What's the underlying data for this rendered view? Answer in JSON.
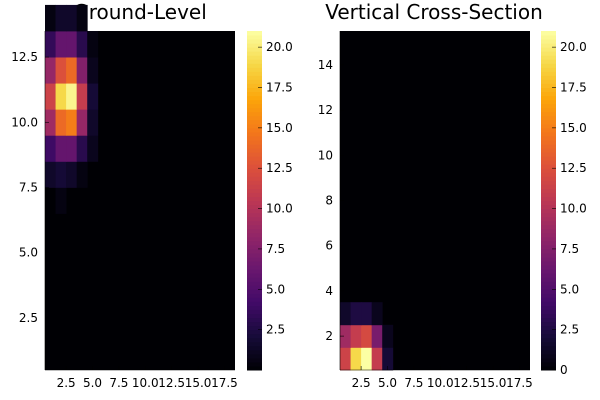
{
  "chart_data": [
    {
      "type": "heatmap",
      "title": "Ground-Level",
      "xlabel": "",
      "ylabel": "",
      "xlim": [
        0.5,
        18.5
      ],
      "ylim": [
        0.5,
        13.5
      ],
      "x_ticks": [
        2.5,
        5.0,
        7.5,
        10.0,
        12.5,
        15.0,
        17.5
      ],
      "x_tick_labels": [
        "2.5",
        "5.0",
        "7.5",
        "10.0",
        "12.5",
        "15.0",
        "17.5"
      ],
      "y_ticks": [
        2.5,
        5.0,
        7.5,
        10.0,
        12.5
      ],
      "y_tick_labels": [
        "2.5",
        "5.0",
        "7.5",
        "10.0",
        "12.5"
      ],
      "colorbar": {
        "colormap": "inferno",
        "range": [
          0,
          21
        ],
        "ticks": [
          2.5,
          5.0,
          7.5,
          10.0,
          12.5,
          15.0,
          17.5,
          20.0
        ],
        "tick_labels": [
          "2.5",
          "5.0",
          "7.5",
          "10.0",
          "12.5",
          "15.0",
          "17.5",
          "20.0"
        ]
      },
      "background_value": 0,
      "cells": [
        {
          "col": 2,
          "row": 7,
          "value": 0.5
        },
        {
          "col": 1,
          "row": 8,
          "value": 1.5
        },
        {
          "col": 2,
          "row": 8,
          "value": 2.0
        },
        {
          "col": 3,
          "row": 8,
          "value": 1.5
        },
        {
          "col": 4,
          "row": 8,
          "value": 0.5
        },
        {
          "col": 1,
          "row": 9,
          "value": 4.0
        },
        {
          "col": 2,
          "row": 9,
          "value": 6.0
        },
        {
          "col": 3,
          "row": 9,
          "value": 6.0
        },
        {
          "col": 4,
          "row": 9,
          "value": 3.0
        },
        {
          "col": 5,
          "row": 9,
          "value": 1.0
        },
        {
          "col": 1,
          "row": 10,
          "value": 9.0
        },
        {
          "col": 2,
          "row": 10,
          "value": 14.0
        },
        {
          "col": 3,
          "row": 10,
          "value": 15.0
        },
        {
          "col": 4,
          "row": 10,
          "value": 8.5
        },
        {
          "col": 5,
          "row": 10,
          "value": 1.5
        },
        {
          "col": 1,
          "row": 11,
          "value": 11.5
        },
        {
          "col": 2,
          "row": 11,
          "value": 19.0
        },
        {
          "col": 3,
          "row": 11,
          "value": 20.5
        },
        {
          "col": 4,
          "row": 11,
          "value": 11.0
        },
        {
          "col": 5,
          "row": 11,
          "value": 2.0
        },
        {
          "col": 1,
          "row": 12,
          "value": 8.5
        },
        {
          "col": 2,
          "row": 12,
          "value": 12.5
        },
        {
          "col": 3,
          "row": 12,
          "value": 14.0
        },
        {
          "col": 4,
          "row": 12,
          "value": 7.5
        },
        {
          "col": 5,
          "row": 12,
          "value": 1.0
        },
        {
          "col": 1,
          "row": 13,
          "value": 3.5
        },
        {
          "col": 2,
          "row": 13,
          "value": 6.0
        },
        {
          "col": 3,
          "row": 13,
          "value": 6.0
        },
        {
          "col": 4,
          "row": 13,
          "value": 3.0
        },
        {
          "col": 5,
          "row": 13,
          "value": 0.5
        },
        {
          "col": 1,
          "row": 14,
          "value": 0.5
        },
        {
          "col": 2,
          "row": 14,
          "value": 1.5
        },
        {
          "col": 3,
          "row": 14,
          "value": 1.5
        },
        {
          "col": 4,
          "row": 14,
          "value": 0.5
        }
      ]
    },
    {
      "type": "heatmap",
      "title": "Vertical Cross-Section",
      "xlabel": "",
      "ylabel": "",
      "xlim": [
        0.5,
        18.5
      ],
      "ylim": [
        0.5,
        15.5
      ],
      "x_ticks": [
        2.5,
        5.0,
        7.5,
        10.0,
        12.5,
        15.0,
        17.5
      ],
      "x_tick_labels": [
        "2.5",
        "5.0",
        "7.5",
        "10.0",
        "12.5",
        "15.0",
        "17.5"
      ],
      "y_ticks": [
        2,
        4,
        6,
        8,
        10,
        12,
        14
      ],
      "y_tick_labels": [
        "2",
        "4",
        "6",
        "8",
        "10",
        "12",
        "14"
      ],
      "colorbar": {
        "colormap": "inferno",
        "range": [
          0,
          21
        ],
        "ticks": [
          0,
          2.5,
          5.0,
          7.5,
          10.0,
          12.5,
          15.0,
          17.5,
          20.0
        ],
        "tick_labels": [
          "0",
          "2.5",
          "5.0",
          "7.5",
          "10.0",
          "12.5",
          "15.0",
          "17.5",
          "20.0"
        ]
      },
      "background_value": 0,
      "cells": [
        {
          "col": 1,
          "row": 1,
          "value": 11.5
        },
        {
          "col": 2,
          "row": 1,
          "value": 19.0
        },
        {
          "col": 3,
          "row": 1,
          "value": 21.0
        },
        {
          "col": 4,
          "row": 1,
          "value": 11.0
        },
        {
          "col": 5,
          "row": 1,
          "value": 2.0
        },
        {
          "col": 1,
          "row": 2,
          "value": 9.0
        },
        {
          "col": 2,
          "row": 2,
          "value": 11.0
        },
        {
          "col": 3,
          "row": 2,
          "value": 12.0
        },
        {
          "col": 4,
          "row": 2,
          "value": 7.0
        },
        {
          "col": 5,
          "row": 2,
          "value": 1.0
        },
        {
          "col": 1,
          "row": 3,
          "value": 1.5
        },
        {
          "col": 2,
          "row": 3,
          "value": 2.5
        },
        {
          "col": 3,
          "row": 3,
          "value": 2.5
        },
        {
          "col": 4,
          "row": 3,
          "value": 1.0
        }
      ]
    }
  ]
}
